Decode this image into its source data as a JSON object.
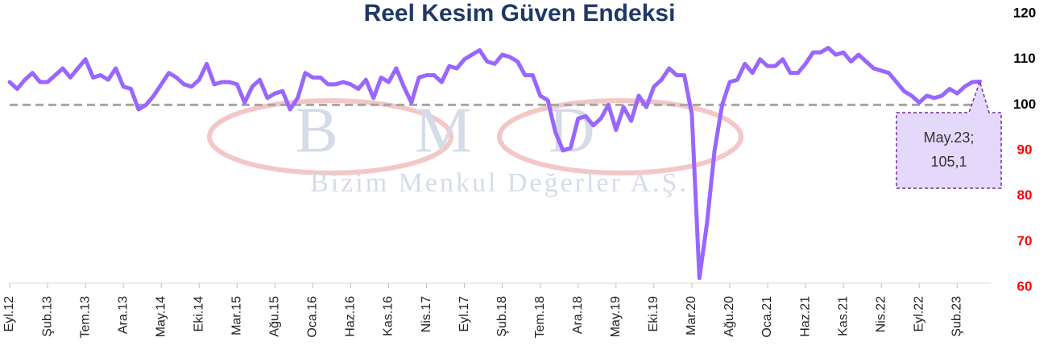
{
  "chart_data": {
    "type": "line",
    "title": "Reel Kesim Güven Endeksi",
    "watermark": {
      "logo": "BMD",
      "text": "Bizim Menkul Değerler A.Ş."
    },
    "categories": [
      "Eyl.12",
      null,
      null,
      null,
      null,
      "Şub.13",
      null,
      null,
      null,
      null,
      "Tem.13",
      null,
      null,
      null,
      null,
      "Ara.13",
      null,
      null,
      null,
      null,
      "May.14",
      null,
      null,
      null,
      null,
      "Eki.14",
      null,
      null,
      null,
      null,
      "Mar.15",
      null,
      null,
      null,
      null,
      "Ağu.15",
      null,
      null,
      null,
      null,
      "Oca.16",
      null,
      null,
      null,
      null,
      "Haz.16",
      null,
      null,
      null,
      null,
      "Kas.16",
      null,
      null,
      null,
      null,
      "Nis.17",
      null,
      null,
      null,
      null,
      "Eyl.17",
      null,
      null,
      null,
      null,
      "Şub.18",
      null,
      null,
      null,
      null,
      "Tem.18",
      null,
      null,
      null,
      null,
      "Ara.18",
      null,
      null,
      null,
      null,
      "May.19",
      null,
      null,
      null,
      null,
      "Eki.19",
      null,
      null,
      null,
      null,
      "Mar.20",
      null,
      null,
      null,
      null,
      "Ağu.20",
      null,
      null,
      null,
      null,
      "Oca.21",
      null,
      null,
      null,
      null,
      "Haz.21",
      null,
      null,
      null,
      null,
      "Kas.21",
      null,
      null,
      null,
      null,
      "Nis.22",
      null,
      null,
      null,
      null,
      "Eyl.22",
      null,
      null,
      null,
      null,
      "Şub.23",
      null,
      null,
      null
    ],
    "values": [
      105,
      103.5,
      105.5,
      107,
      105,
      105,
      106.5,
      108,
      106,
      108,
      110,
      106,
      106.5,
      105.5,
      108,
      104,
      103.5,
      99,
      100,
      102,
      104.5,
      107,
      106,
      104.5,
      104,
      105.5,
      109,
      104.5,
      105,
      105,
      104.5,
      100.5,
      104,
      105.5,
      101.5,
      102.5,
      103,
      99,
      101.5,
      107,
      106,
      106,
      104.5,
      104.5,
      105,
      104.5,
      103.5,
      105.5,
      101.5,
      106,
      105,
      108,
      104,
      100.5,
      106,
      106.5,
      106.5,
      105,
      108.5,
      108,
      110,
      111,
      112,
      109.5,
      109,
      111,
      110.5,
      109.5,
      106.5,
      106.5,
      102,
      101,
      94,
      90,
      90.5,
      97,
      97.5,
      95.5,
      97,
      100,
      94.5,
      99.5,
      96.5,
      102,
      99.5,
      104,
      105.5,
      108,
      106.5,
      106.5,
      98,
      62,
      74,
      90,
      100,
      105,
      105.5,
      109,
      107,
      110,
      108.5,
      108.5,
      110,
      107,
      107,
      109,
      111.5,
      111.5,
      112.5,
      111,
      111.5,
      109.5,
      111,
      109.5,
      108,
      107.5,
      107,
      105,
      103,
      102,
      100.5,
      102,
      101.5,
      102,
      103.5,
      102.5,
      104,
      105,
      105.1
    ],
    "color": "#9966ff",
    "ylim": [
      60,
      120
    ],
    "yticks": [
      60,
      70,
      80,
      90,
      100,
      110,
      120
    ],
    "ytick_colors": [
      "#ff0000",
      "#ff0000",
      "#ff0000",
      "#ff0000",
      "#000000",
      "#000000",
      "#000000"
    ],
    "hline": {
      "value": 100,
      "color": "#a6a6a6"
    },
    "annotation": {
      "text": [
        "May.23;",
        "105,1"
      ]
    }
  }
}
